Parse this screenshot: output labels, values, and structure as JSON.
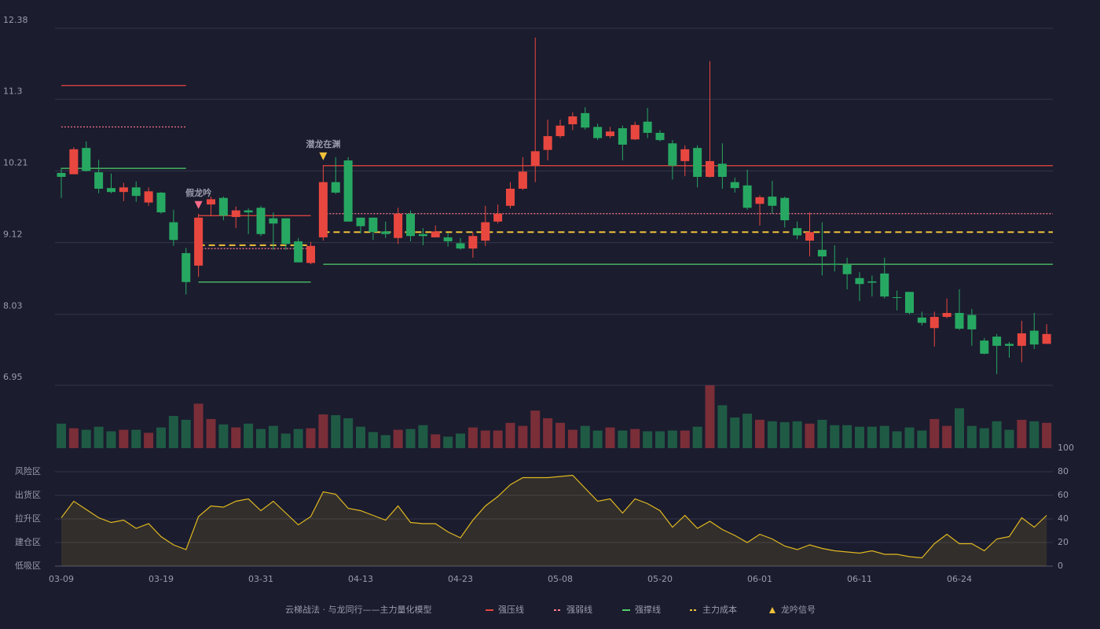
{
  "chart_data": [
    {
      "type": "candlestick",
      "categories": [
        "03-09",
        null,
        null,
        null,
        null,
        null,
        null,
        null,
        "03-19",
        null,
        null,
        null,
        null,
        null,
        null,
        null,
        "03-31",
        null,
        null,
        null,
        null,
        null,
        null,
        null,
        "04-13",
        null,
        null,
        null,
        null,
        null,
        null,
        null,
        "04-23",
        null,
        null,
        null,
        null,
        null,
        null,
        null,
        "05-08",
        null,
        null,
        null,
        null,
        null,
        null,
        null,
        "05-20",
        null,
        null,
        null,
        null,
        null,
        null,
        null,
        "06-01",
        null,
        null,
        null,
        null,
        null,
        null,
        null,
        "06-11",
        null,
        null,
        null,
        null,
        null,
        null,
        null,
        "06-24",
        null,
        null,
        null,
        null,
        null,
        null,
        null
      ],
      "open": [
        10.18,
        10.16,
        10.56,
        10.19,
        9.95,
        9.89,
        9.96,
        9.73,
        9.88,
        9.43,
        8.96,
        8.77,
        9.7,
        9.8,
        9.51,
        9.61,
        9.65,
        9.49,
        9.49,
        9.14,
        8.81,
        9.2,
        10.04,
        10.37,
        9.5,
        9.5,
        9.29,
        9.19,
        9.56,
        9.25,
        9.2,
        9.2,
        9.11,
        9.03,
        9.15,
        9.44,
        9.68,
        9.94,
        10.29,
        10.53,
        10.74,
        10.92,
        11.09,
        10.88,
        10.74,
        10.86,
        10.69,
        10.96,
        10.79,
        10.63,
        10.36,
        10.56,
        10.12,
        10.32,
        10.04,
        9.99,
        9.71,
        9.82,
        9.8,
        9.34,
        9.15,
        9.01,
        8.8,
        8.78,
        8.58,
        8.53,
        8.65,
        8.29,
        8.37,
        7.98,
        7.82,
        7.99,
        8.05,
        8.02,
        7.63,
        7.69,
        7.58,
        7.55,
        7.78,
        7.58
      ],
      "close": [
        10.12,
        10.54,
        10.21,
        9.94,
        9.89,
        9.96,
        9.83,
        9.9,
        9.58,
        9.16,
        8.52,
        9.5,
        9.78,
        9.53,
        9.61,
        9.58,
        9.25,
        9.41,
        9.1,
        8.82,
        9.07,
        10.04,
        9.88,
        9.44,
        9.37,
        9.28,
        9.25,
        9.56,
        9.22,
        9.22,
        9.29,
        9.14,
        9.03,
        9.22,
        9.43,
        9.56,
        9.94,
        10.2,
        10.51,
        10.74,
        10.9,
        11.04,
        10.87,
        10.71,
        10.81,
        10.61,
        10.91,
        10.79,
        10.68,
        10.29,
        10.54,
        10.12,
        10.36,
        10.12,
        9.95,
        9.65,
        9.81,
        9.68,
        9.46,
        9.23,
        9.28,
        8.91,
        8.79,
        8.64,
        8.49,
        8.51,
        8.3,
        8.28,
        8.05,
        7.9,
        7.99,
        8.05,
        7.81,
        7.8,
        7.43,
        7.55,
        7.55,
        7.74,
        7.57,
        7.73
      ],
      "high": [
        10.26,
        10.57,
        10.66,
        10.38,
        10.17,
        10.03,
        10.05,
        9.96,
        9.89,
        9.62,
        9.04,
        9.56,
        9.82,
        9.82,
        9.67,
        9.64,
        9.68,
        9.58,
        9.49,
        9.19,
        9.13,
        10.3,
        10.42,
        10.42,
        9.5,
        9.5,
        9.44,
        9.65,
        9.61,
        9.34,
        9.38,
        9.27,
        9.19,
        9.28,
        9.68,
        9.7,
        10.04,
        10.42,
        12.24,
        10.99,
        10.99,
        11.1,
        11.18,
        10.93,
        10.88,
        10.9,
        10.96,
        11.17,
        10.83,
        10.68,
        10.6,
        10.6,
        11.88,
        10.63,
        10.11,
        10.23,
        9.84,
        10.06,
        9.82,
        9.44,
        9.58,
        9.43,
        9.08,
        8.89,
        8.67,
        8.62,
        8.89,
        8.39,
        8.37,
        8.07,
        8.07,
        8.27,
        8.41,
        8.11,
        7.67,
        7.73,
        7.61,
        7.93,
        8.05,
        7.88
      ],
      "low": [
        9.8,
        10.16,
        10.2,
        9.87,
        9.87,
        9.75,
        9.74,
        9.68,
        9.56,
        9.07,
        8.33,
        8.6,
        9.52,
        9.46,
        9.34,
        9.25,
        9.22,
        9.01,
        9.01,
        8.82,
        8.79,
        9.15,
        9.86,
        9.44,
        9.26,
        9.16,
        9.19,
        9.1,
        9.14,
        9.08,
        9.2,
        9.06,
        9.01,
        8.89,
        9.07,
        9.41,
        9.64,
        9.92,
        10.04,
        10.37,
        10.71,
        10.83,
        10.84,
        10.68,
        10.71,
        10.37,
        10.68,
        10.71,
        10.66,
        10.08,
        10.13,
        9.96,
        10.11,
        9.94,
        9.88,
        9.62,
        9.38,
        9.56,
        9.35,
        9.17,
        8.91,
        8.62,
        8.68,
        8.41,
        8.23,
        8.3,
        8.27,
        8.09,
        8.03,
        7.86,
        7.54,
        7.97,
        7.79,
        7.55,
        7.42,
        7.12,
        7.37,
        7.3,
        7.5,
        7.58
      ],
      "ylim": [
        6.95,
        12.38
      ],
      "yticks": [
        6.95,
        8.03,
        9.12,
        10.21,
        11.3,
        12.38
      ],
      "grid": true,
      "up_color": "#e8473f",
      "down_color": "#27a862",
      "levels": [
        {
          "name": "强压线",
          "color": "#e8473f",
          "style": "solid",
          "segments": [
            {
              "from": 0,
              "to": 10,
              "value": 11.51
            },
            {
              "from": 11,
              "to": 20,
              "value": 9.53
            },
            {
              "from": 21,
              "to": 79,
              "value": 10.29
            }
          ]
        },
        {
          "name": "强弱线",
          "color": "#ff7b8e",
          "style": "dotted",
          "segments": [
            {
              "from": 0,
              "to": 10,
              "value": 10.88
            },
            {
              "from": 11,
              "to": 20,
              "value": 9.03
            },
            {
              "from": 21,
              "to": 79,
              "value": 9.56
            }
          ]
        },
        {
          "name": "强撑线",
          "color": "#4fd06a",
          "style": "solid",
          "segments": [
            {
              "from": 0,
              "to": 10,
              "value": 10.25
            },
            {
              "from": 11,
              "to": 20,
              "value": 8.52
            },
            {
              "from": 21,
              "to": 79,
              "value": 8.79
            }
          ]
        },
        {
          "name": "主力成本",
          "color": "#f0c23a",
          "style": "dashed",
          "segments": [
            {
              "from": 11,
              "to": 20,
              "value": 9.08
            },
            {
              "from": 21,
              "to": 79,
              "value": 9.28
            }
          ]
        }
      ],
      "signal_name": "龙吟信号",
      "signal_color": "#f0c23a",
      "signals": [
        {
          "index": 11,
          "label": "假龙吟",
          "color": "#ff6b8a"
        },
        {
          "index": 21,
          "label": "潜龙在渊",
          "color": "#f0c23a"
        }
      ],
      "legend_title": "云梯战法 · 与龙同行——主力量化模型"
    },
    {
      "type": "bar",
      "values": [
        32,
        26,
        24,
        28,
        22,
        24,
        24,
        20,
        27,
        42,
        37,
        58,
        38,
        31,
        27,
        32,
        25,
        29,
        19,
        25,
        26,
        44,
        43,
        39,
        28,
        21,
        17,
        24,
        25,
        30,
        18,
        15,
        19,
        27,
        23,
        23,
        33,
        29,
        49,
        39,
        33,
        24,
        29,
        23,
        27,
        23,
        25,
        22,
        22,
        23,
        23,
        28,
        82,
        56,
        40,
        45,
        37,
        35,
        34,
        35,
        32,
        37,
        30,
        30,
        28,
        28,
        29,
        22,
        27,
        23,
        38,
        29,
        52,
        29,
        26,
        35,
        24,
        37,
        35,
        33
      ],
      "up_color": "#7a2e38",
      "down_color": "#1f5a45"
    },
    {
      "type": "line",
      "values": [
        41,
        55,
        48,
        41,
        37,
        39,
        32,
        36,
        25,
        18,
        14,
        42,
        51,
        50,
        55,
        57,
        47,
        55,
        45,
        35,
        42,
        63,
        61,
        49,
        47,
        43,
        39,
        51,
        37,
        36,
        36,
        29,
        24,
        39,
        51,
        59,
        69,
        75,
        75,
        75,
        76,
        77,
        66,
        55,
        57,
        45,
        57,
        53,
        47,
        33,
        43,
        32,
        38,
        31,
        26,
        20,
        27,
        23,
        17,
        14,
        18,
        15,
        13,
        12,
        11,
        13,
        10,
        10,
        8,
        7,
        19,
        27,
        19,
        19,
        13,
        23,
        25,
        41,
        33,
        43
      ],
      "color": "#e0b820",
      "ylim": [
        0,
        100
      ],
      "yticks": [
        0,
        20,
        40,
        60,
        80,
        100
      ],
      "ytick_colors": [
        "#e8473f",
        "#f0a030",
        "#6ea8ff",
        "#e050e0",
        "#f0a030",
        "#4fd06a"
      ],
      "zones": [
        {
          "value": 80,
          "label": "风险区",
          "color": "#f0a030"
        },
        {
          "value": 60,
          "label": "出货区",
          "color": "#e050e0"
        },
        {
          "value": 40,
          "label": "拉升区",
          "color": "#6ea8ff"
        },
        {
          "value": 20,
          "label": "建仓区",
          "color": "#f05060"
        },
        {
          "value": 0,
          "label": "低吸区",
          "color": "#f03050"
        }
      ]
    }
  ]
}
